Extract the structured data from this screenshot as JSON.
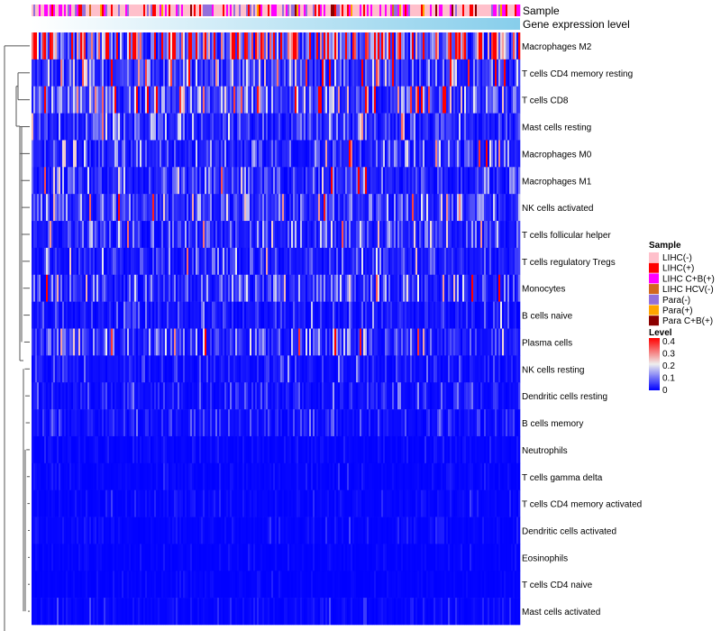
{
  "chart_data": {
    "type": "heatmap",
    "title": "",
    "annotation_labels": {
      "sample": "Sample",
      "gene": "Gene expression level"
    },
    "rows": [
      "Macrophages M2",
      "T cells CD4 memory resting",
      "T cells CD8",
      "Mast cells resting",
      "Macrophages M0",
      "Macrophages M1",
      "NK cells activated",
      "T cells follicular helper",
      "T cells regulatory  Tregs",
      "Monocytes",
      "B cells naive",
      "Plasma cells",
      "NK cells resting",
      "Dendritic cells resting",
      "B cells memory",
      "Neutrophils",
      "T cells gamma delta",
      "T cells CD4 memory activated",
      "Dendritic cells activated",
      "Eosinophils",
      "T cells CD4 naive",
      "Mast cells activated"
    ],
    "row_mean_level": [
      0.3,
      0.12,
      0.15,
      0.08,
      0.07,
      0.08,
      0.09,
      0.07,
      0.06,
      0.09,
      0.04,
      0.08,
      0.03,
      0.03,
      0.03,
      0.01,
      0.01,
      0.01,
      0.01,
      0.005,
      0.005,
      0.01
    ],
    "sample_legend": {
      "title": "Sample",
      "items": [
        {
          "label": "LIHC(-)",
          "color": "#FFC0CB"
        },
        {
          "label": "LIHC(+)",
          "color": "#FF0000"
        },
        {
          "label": "LIHC C+B(+)",
          "color": "#FF00FF"
        },
        {
          "label": "LIHC HCV(-)",
          "color": "#D2691E"
        },
        {
          "label": "Para(-)",
          "color": "#9370DB"
        },
        {
          "label": "Para(+)",
          "color": "#FFA500"
        },
        {
          "label": "Para C+B(+)",
          "color": "#8B0000"
        }
      ]
    },
    "level_legend": {
      "title": "Level",
      "ticks": [
        "0.4",
        "0.3",
        "0.2",
        "0.1",
        "0"
      ],
      "range": [
        0,
        0.4
      ],
      "colors": [
        "#0000FF",
        "#EEEEEE",
        "#FF0000"
      ]
    },
    "gene_gradient": [
      "#FFFFFF",
      "#87CEEB"
    ]
  }
}
